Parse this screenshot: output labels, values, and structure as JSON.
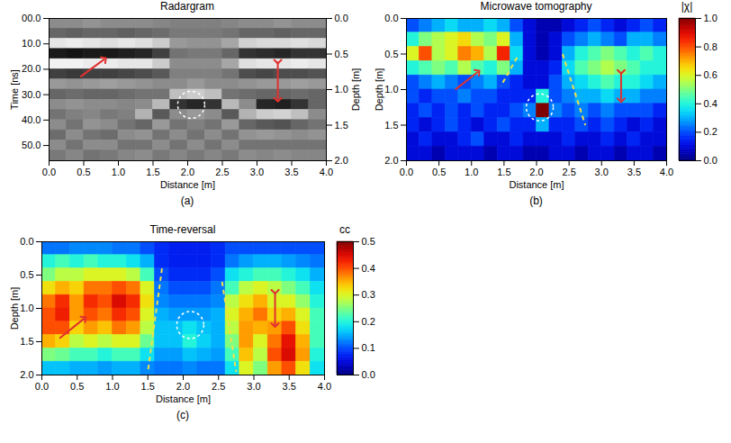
{
  "chart_data": [
    {
      "type": "heatmap",
      "panel": "(a)",
      "title": "Radargram",
      "x_label": "Distance [m]",
      "y_label": "Time [ns]",
      "y2_label": "Depth [m]",
      "xlim": [
        0,
        4
      ],
      "ylim": [
        0,
        56
      ],
      "y2lim": [
        0,
        2
      ],
      "xticks": [
        {
          "value": 0,
          "label": "0.0"
        },
        {
          "value": 0.5,
          "label": "0.5"
        },
        {
          "value": 1,
          "label": "1.0"
        },
        {
          "value": 1.5,
          "label": "1.5"
        },
        {
          "value": 2,
          "label": "2.0"
        },
        {
          "value": 2.5,
          "label": "2.5"
        },
        {
          "value": 3,
          "label": "3.0"
        },
        {
          "value": 3.5,
          "label": "3.5"
        },
        {
          "value": 4,
          "label": "4.0"
        }
      ],
      "yticks": [
        {
          "value": 0,
          "label": "00.0"
        },
        {
          "value": 10,
          "label": "10.0"
        },
        {
          "value": 20,
          "label": "20.0"
        },
        {
          "value": 30,
          "label": "30.0"
        },
        {
          "value": 40,
          "label": "40.0"
        },
        {
          "value": 50,
          "label": "50.0"
        }
      ],
      "y2ticks": [
        {
          "value": 0,
          "label": "0.0"
        },
        {
          "value": 0.5,
          "label": "0.5"
        },
        {
          "value": 1,
          "label": "1.0"
        },
        {
          "value": 1.5,
          "label": "1.5"
        },
        {
          "value": 2,
          "label": "2.0"
        }
      ],
      "zlim": [
        -1,
        1
      ],
      "z": [
        [
          0.1,
          0.1,
          0.15,
          0.1,
          0.1,
          0.1,
          0.05,
          0.0,
          0.0,
          0.0,
          0.05,
          0.1,
          0.1,
          0.15,
          0.1,
          0.1
        ],
        [
          -0.2,
          -0.25,
          -0.2,
          -0.2,
          -0.25,
          -0.2,
          -0.15,
          -0.05,
          -0.05,
          -0.05,
          -0.1,
          -0.2,
          -0.2,
          -0.25,
          -0.2,
          -0.2
        ],
        [
          0.8,
          0.85,
          0.8,
          0.75,
          0.8,
          0.75,
          0.6,
          0.2,
          0.15,
          0.15,
          0.3,
          0.65,
          0.7,
          0.7,
          0.75,
          0.7
        ],
        [
          -0.8,
          -0.85,
          -0.8,
          -0.8,
          -0.75,
          -0.7,
          -0.5,
          -0.1,
          -0.05,
          -0.05,
          -0.2,
          -0.6,
          -0.65,
          -0.7,
          -0.6,
          -0.6
        ],
        [
          0.9,
          0.9,
          0.85,
          0.85,
          0.8,
          0.8,
          0.6,
          0.1,
          0.1,
          0.1,
          0.3,
          0.75,
          0.8,
          0.8,
          0.85,
          0.8
        ],
        [
          -0.5,
          -0.55,
          -0.5,
          -0.5,
          -0.45,
          -0.4,
          -0.3,
          0.0,
          0.0,
          0.0,
          -0.1,
          -0.4,
          -0.45,
          -0.4,
          -0.4,
          -0.35
        ],
        [
          0.2,
          0.15,
          0.2,
          0.25,
          0.2,
          0.15,
          0.1,
          0.1,
          0.2,
          0.1,
          0.1,
          0.15,
          0.2,
          0.2,
          0.25,
          0.2
        ],
        [
          -0.2,
          -0.15,
          -0.2,
          -0.2,
          -0.15,
          -0.1,
          -0.1,
          0.5,
          0.6,
          0.5,
          -0.1,
          -0.15,
          -0.2,
          -0.2,
          -0.15,
          -0.2
        ],
        [
          0.1,
          0.15,
          0.1,
          0.1,
          0.05,
          0.1,
          0.45,
          -0.6,
          -0.7,
          -0.6,
          0.45,
          0.1,
          -0.7,
          -0.75,
          -0.6,
          -0.2
        ],
        [
          -0.1,
          0.0,
          0.05,
          -0.05,
          0.0,
          0.4,
          -0.3,
          0.1,
          0.2,
          0.1,
          -0.3,
          0.4,
          0.6,
          0.65,
          0.5,
          0.1
        ],
        [
          0.1,
          -0.1,
          0.15,
          0.1,
          -0.1,
          -0.2,
          0.2,
          -0.1,
          0.0,
          -0.1,
          0.2,
          -0.2,
          -0.3,
          -0.35,
          -0.2,
          -0.1
        ],
        [
          -0.15,
          0.1,
          -0.1,
          -0.15,
          0.1,
          0.15,
          -0.1,
          0.1,
          -0.1,
          0.1,
          -0.1,
          0.15,
          0.2,
          0.15,
          0.1,
          0.15
        ],
        [
          0.1,
          -0.1,
          0.1,
          0.1,
          -0.1,
          -0.1,
          0.1,
          -0.1,
          0.1,
          -0.1,
          0.1,
          -0.1,
          -0.1,
          -0.1,
          -0.1,
          -0.1
        ],
        [
          -0.05,
          0.05,
          -0.1,
          -0.05,
          0.05,
          0.1,
          -0.05,
          0.05,
          -0.05,
          0.05,
          -0.05,
          0.1,
          0.05,
          0.1,
          0.05,
          0.05
        ]
      ],
      "annotations": [
        {
          "shape": "arrow",
          "x1": 0.45,
          "y1": 23,
          "x2": 0.8,
          "y2": 16,
          "color": "#e0312f"
        },
        {
          "shape": "double_arrow",
          "x1": 3.3,
          "y1": 17,
          "x2": 3.3,
          "y2": 32,
          "color": "#e0312f"
        },
        {
          "shape": "circle",
          "x": 2.05,
          "y": 34,
          "color": "#ffffff"
        }
      ]
    },
    {
      "type": "heatmap",
      "panel": "(b)",
      "title": "Microwave tomography",
      "x_label": "Distance [m]",
      "y_label": "Depth [m]",
      "colorbar_label": "|χ|",
      "xlim": [
        0,
        4
      ],
      "ylim": [
        0,
        2
      ],
      "xticks": [
        {
          "value": 0,
          "label": "0.0"
        },
        {
          "value": 0.5,
          "label": "0.5"
        },
        {
          "value": 1,
          "label": "1.0"
        },
        {
          "value": 1.5,
          "label": "1.5"
        },
        {
          "value": 2,
          "label": "2.0"
        },
        {
          "value": 2.5,
          "label": "2.5"
        },
        {
          "value": 3,
          "label": "3.0"
        },
        {
          "value": 3.5,
          "label": "3.5"
        },
        {
          "value": 4,
          "label": "4.0"
        }
      ],
      "yticks": [
        {
          "value": 0,
          "label": "0.0"
        },
        {
          "value": 0.5,
          "label": "0.5"
        },
        {
          "value": 1,
          "label": "1.0"
        },
        {
          "value": 1.5,
          "label": "1.5"
        },
        {
          "value": 2,
          "label": "2.0"
        }
      ],
      "zlim": [
        0,
        1
      ],
      "zticks": [
        {
          "value": 0,
          "label": "0.0"
        },
        {
          "value": 0.2,
          "label": "0.2"
        },
        {
          "value": 0.4,
          "label": "0.4"
        },
        {
          "value": 0.6,
          "label": "0.6"
        },
        {
          "value": 0.8,
          "label": "0.8"
        },
        {
          "value": 1,
          "label": "1.0"
        }
      ],
      "z": [
        [
          0.2,
          0.25,
          0.3,
          0.35,
          0.3,
          0.3,
          0.35,
          0.3,
          0.2,
          0.1,
          0.05,
          0.05,
          0.1,
          0.15,
          0.2,
          0.15,
          0.1,
          0.15,
          0.2,
          0.15
        ],
        [
          0.4,
          0.5,
          0.55,
          0.6,
          0.65,
          0.55,
          0.5,
          0.6,
          0.3,
          0.1,
          0.05,
          0.1,
          0.2,
          0.25,
          0.3,
          0.25,
          0.2,
          0.3,
          0.3,
          0.25
        ],
        [
          0.6,
          0.8,
          0.55,
          0.6,
          0.75,
          0.7,
          0.55,
          0.85,
          0.35,
          0.1,
          0.05,
          0.1,
          0.3,
          0.4,
          0.45,
          0.5,
          0.45,
          0.4,
          0.45,
          0.4
        ],
        [
          0.4,
          0.45,
          0.5,
          0.45,
          0.55,
          0.45,
          0.4,
          0.5,
          0.3,
          0.1,
          0.1,
          0.15,
          0.35,
          0.45,
          0.5,
          0.55,
          0.5,
          0.45,
          0.4,
          0.4
        ],
        [
          0.2,
          0.25,
          0.3,
          0.25,
          0.2,
          0.25,
          0.3,
          0.2,
          0.15,
          0.1,
          0.1,
          0.2,
          0.3,
          0.35,
          0.4,
          0.45,
          0.4,
          0.4,
          0.35,
          0.3
        ],
        [
          0.2,
          0.15,
          0.2,
          0.2,
          0.25,
          0.2,
          0.2,
          0.15,
          0.15,
          0.15,
          0.4,
          0.2,
          0.25,
          0.3,
          0.3,
          0.35,
          0.3,
          0.3,
          0.25,
          0.25
        ],
        [
          0.15,
          0.2,
          0.15,
          0.2,
          0.15,
          0.2,
          0.15,
          0.15,
          0.2,
          0.25,
          1.0,
          0.25,
          0.2,
          0.25,
          0.2,
          0.25,
          0.2,
          0.2,
          0.2,
          0.15
        ],
        [
          0.15,
          0.1,
          0.15,
          0.2,
          0.15,
          0.1,
          0.15,
          0.2,
          0.15,
          0.15,
          0.3,
          0.15,
          0.15,
          0.2,
          0.15,
          0.2,
          0.15,
          0.1,
          0.15,
          0.1
        ],
        [
          0.1,
          0.15,
          0.1,
          0.1,
          0.15,
          0.2,
          0.1,
          0.1,
          0.15,
          0.1,
          0.1,
          0.1,
          0.15,
          0.1,
          0.1,
          0.15,
          0.1,
          0.15,
          0.1,
          0.1
        ],
        [
          0.1,
          0.1,
          0.05,
          0.1,
          0.1,
          0.1,
          0.05,
          0.1,
          0.1,
          0.05,
          0.05,
          0.1,
          0.1,
          0.05,
          0.1,
          0.1,
          0.05,
          0.1,
          0.1,
          0.05
        ]
      ],
      "annotations": [
        {
          "shape": "arrow",
          "x1": 0.75,
          "y1": 1.0,
          "x2": 1.1,
          "y2": 0.75,
          "color": "#e0312f"
        },
        {
          "shape": "double_arrow",
          "x1": 3.3,
          "y1": 0.75,
          "x2": 3.3,
          "y2": 1.15,
          "color": "#e0312f"
        },
        {
          "shape": "circle",
          "x": 2.05,
          "y": 1.25,
          "color": "#ffffff"
        },
        {
          "shape": "dashed_line",
          "x1": 1.7,
          "y1": 0.55,
          "x2": 1.45,
          "y2": 0.95,
          "color": "#f2e04a"
        },
        {
          "shape": "dashed_line",
          "x1": 2.4,
          "y1": 0.5,
          "x2": 2.75,
          "y2": 1.5,
          "color": "#f2e04a"
        }
      ]
    },
    {
      "type": "heatmap",
      "panel": "(c)",
      "title": "Time-reversal",
      "x_label": "Distance [m]",
      "y_label": "Depth [m]",
      "colorbar_label": "cc",
      "xlim": [
        0,
        4
      ],
      "ylim": [
        0,
        2
      ],
      "xticks": [
        {
          "value": 0,
          "label": "0.0"
        },
        {
          "value": 0.5,
          "label": "0.5"
        },
        {
          "value": 1,
          "label": "1.0"
        },
        {
          "value": 1.5,
          "label": "1.5"
        },
        {
          "value": 2,
          "label": "2.0"
        },
        {
          "value": 2.5,
          "label": "2.5"
        },
        {
          "value": 3,
          "label": "3.0"
        },
        {
          "value": 3.5,
          "label": "3.5"
        },
        {
          "value": 4,
          "label": "4.0"
        }
      ],
      "yticks": [
        {
          "value": 0,
          "label": "0.0"
        },
        {
          "value": 0.5,
          "label": "0.5"
        },
        {
          "value": 1,
          "label": "1.0"
        },
        {
          "value": 1.5,
          "label": "1.5"
        },
        {
          "value": 2,
          "label": "2.0"
        }
      ],
      "zlim": [
        0,
        0.5
      ],
      "zticks": [
        {
          "value": 0,
          "label": "0.0"
        },
        {
          "value": 0.1,
          "label": "0.1"
        },
        {
          "value": 0.2,
          "label": "0.2"
        },
        {
          "value": 0.3,
          "label": "0.3"
        },
        {
          "value": 0.4,
          "label": "0.4"
        },
        {
          "value": 0.5,
          "label": "0.5"
        }
      ],
      "z": [
        [
          0.12,
          0.12,
          0.13,
          0.13,
          0.13,
          0.12,
          0.12,
          0.1,
          0.08,
          0.07,
          0.07,
          0.07,
          0.08,
          0.1,
          0.1,
          0.1,
          0.1,
          0.1,
          0.1,
          0.1
        ],
        [
          0.2,
          0.22,
          0.2,
          0.22,
          0.2,
          0.2,
          0.18,
          0.15,
          0.08,
          0.07,
          0.07,
          0.07,
          0.08,
          0.12,
          0.14,
          0.15,
          0.15,
          0.14,
          0.13,
          0.12
        ],
        [
          0.25,
          0.28,
          0.28,
          0.3,
          0.3,
          0.3,
          0.28,
          0.22,
          0.1,
          0.08,
          0.08,
          0.08,
          0.1,
          0.18,
          0.2,
          0.22,
          0.22,
          0.2,
          0.18,
          0.15
        ],
        [
          0.32,
          0.35,
          0.33,
          0.38,
          0.38,
          0.4,
          0.38,
          0.3,
          0.12,
          0.1,
          0.1,
          0.1,
          0.12,
          0.22,
          0.28,
          0.3,
          0.28,
          0.25,
          0.22,
          0.18
        ],
        [
          0.38,
          0.42,
          0.36,
          0.42,
          0.4,
          0.45,
          0.42,
          0.32,
          0.13,
          0.12,
          0.12,
          0.12,
          0.13,
          0.28,
          0.32,
          0.35,
          0.3,
          0.3,
          0.26,
          0.2
        ],
        [
          0.4,
          0.43,
          0.36,
          0.4,
          0.38,
          0.42,
          0.4,
          0.3,
          0.15,
          0.14,
          0.14,
          0.14,
          0.15,
          0.3,
          0.35,
          0.38,
          0.33,
          0.35,
          0.3,
          0.22
        ],
        [
          0.4,
          0.4,
          0.33,
          0.36,
          0.34,
          0.38,
          0.36,
          0.28,
          0.16,
          0.16,
          0.18,
          0.16,
          0.15,
          0.28,
          0.36,
          0.35,
          0.36,
          0.4,
          0.32,
          0.22
        ],
        [
          0.35,
          0.33,
          0.28,
          0.3,
          0.28,
          0.3,
          0.3,
          0.24,
          0.16,
          0.16,
          0.2,
          0.17,
          0.15,
          0.25,
          0.36,
          0.3,
          0.38,
          0.44,
          0.35,
          0.22
        ],
        [
          0.25,
          0.24,
          0.22,
          0.22,
          0.2,
          0.22,
          0.22,
          0.18,
          0.14,
          0.14,
          0.16,
          0.15,
          0.14,
          0.22,
          0.34,
          0.28,
          0.4,
          0.45,
          0.36,
          0.2
        ],
        [
          0.16,
          0.16,
          0.15,
          0.15,
          0.14,
          0.15,
          0.15,
          0.13,
          0.12,
          0.12,
          0.13,
          0.12,
          0.12,
          0.18,
          0.3,
          0.25,
          0.36,
          0.4,
          0.32,
          0.18
        ]
      ],
      "annotations": [
        {
          "shape": "arrow",
          "x1": 0.25,
          "y1": 1.45,
          "x2": 0.6,
          "y2": 1.15,
          "color": "#e0312f"
        },
        {
          "shape": "double_arrow",
          "x1": 3.3,
          "y1": 0.75,
          "x2": 3.3,
          "y2": 1.25,
          "color": "#e0312f"
        },
        {
          "shape": "circle",
          "x": 2.1,
          "y": 1.25,
          "color": "#ffffff"
        },
        {
          "shape": "dashed_line",
          "x1": 1.7,
          "y1": 0.4,
          "x2": 1.5,
          "y2": 1.95,
          "color": "#f2e04a"
        },
        {
          "shape": "dashed_line",
          "x1": 2.55,
          "y1": 0.6,
          "x2": 2.75,
          "y2": 1.95,
          "color": "#f2e04a"
        }
      ]
    }
  ]
}
